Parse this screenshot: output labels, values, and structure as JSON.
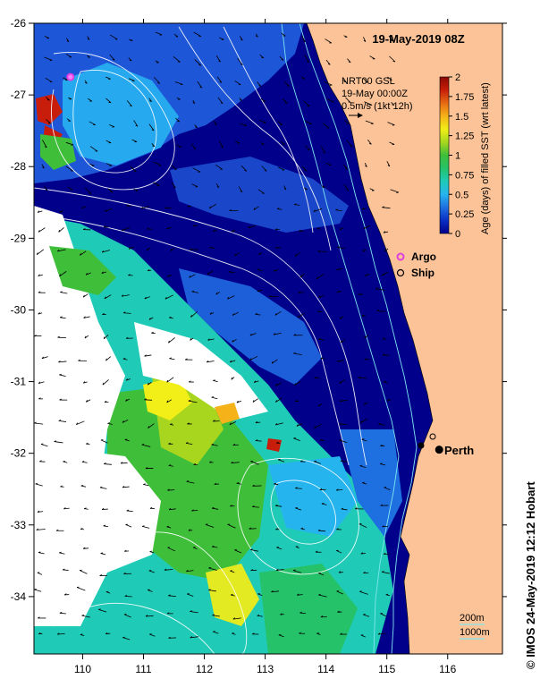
{
  "map": {
    "title": "19-May-2019 08Z",
    "current_product": "NRT00 GSL",
    "current_time": "19-May 00:00Z",
    "current_scale": "0.5m/s (1kt 12h)",
    "credit": "© IMOS 24-May-2019 12:12 Hobart",
    "x_ticks": [
      "110",
      "111",
      "112",
      "113",
      "114",
      "115",
      "116"
    ],
    "y_ticks": [
      "-26",
      "-27",
      "-28",
      "-29",
      "-30",
      "-31",
      "-32",
      "-33",
      "-34"
    ],
    "x_range": [
      109.2,
      116.9
    ],
    "y_range": [
      -34.8,
      -26.0
    ],
    "colorbar": {
      "label": "Age (days) of filled SST (wrt latest)",
      "ticks": [
        "0",
        "0.25",
        "0.5",
        "0.75",
        "1",
        "1.25",
        "1.5",
        "1.75",
        "2"
      ],
      "range": [
        0,
        2
      ],
      "colors": [
        "#00008b",
        "#0a2fc4",
        "#1e6fe0",
        "#26b4ef",
        "#1fcbb7",
        "#25c26a",
        "#3fbe3a",
        "#a8d61e",
        "#f2ee18",
        "#f5b219",
        "#e66a12",
        "#c81d0a",
        "#8b0a02"
      ]
    },
    "legend": {
      "argo_label": "Argo",
      "ship_label": "Ship",
      "argo_color": "#e040e0"
    },
    "place": {
      "name": "Perth",
      "lon": 115.86,
      "lat": -31.95
    },
    "argo_float": {
      "lon": 109.8,
      "lat": -26.75
    },
    "depth_labels": [
      "200m",
      "1000m"
    ],
    "land_color": "#fbc397",
    "no_data_color": "#ffffff"
  }
}
